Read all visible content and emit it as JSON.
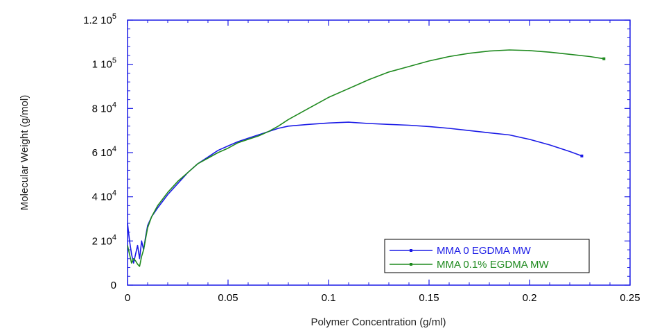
{
  "chart_data": {
    "type": "line",
    "xlabel": "Polymer Concentration (g/ml)",
    "ylabel": "Molecular Weight (g/mol)",
    "xlim": [
      0,
      0.25
    ],
    "ylim": [
      0,
      120000
    ],
    "x_ticks": [
      {
        "value": 0,
        "label": "0"
      },
      {
        "value": 0.05,
        "label": "0.05"
      },
      {
        "value": 0.1,
        "label": "0.1"
      },
      {
        "value": 0.15,
        "label": "0.15"
      },
      {
        "value": 0.2,
        "label": "0.2"
      },
      {
        "value": 0.25,
        "label": "0.25"
      }
    ],
    "y_ticks": [
      {
        "value": 0,
        "mantissa": "0",
        "exp": ""
      },
      {
        "value": 20000,
        "mantissa": "2 10",
        "exp": "4"
      },
      {
        "value": 40000,
        "mantissa": "4 10",
        "exp": "4"
      },
      {
        "value": 60000,
        "mantissa": "6 10",
        "exp": "4"
      },
      {
        "value": 80000,
        "mantissa": "8 10",
        "exp": "4"
      },
      {
        "value": 100000,
        "mantissa": "1 10",
        "exp": "5"
      },
      {
        "value": 120000,
        "mantissa": "1.2 10",
        "exp": "5"
      }
    ],
    "legend_position": "bottom-right",
    "grid": false,
    "series": [
      {
        "name": "MMA 0 EGDMA MW",
        "color": "#1a1ae6",
        "points": [
          [
            0,
            28000
          ],
          [
            0.001,
            20000
          ],
          [
            0.002,
            14000
          ],
          [
            0.003,
            10000
          ],
          [
            0.004,
            14000
          ],
          [
            0.005,
            18000
          ],
          [
            0.006,
            12000
          ],
          [
            0.007,
            20000
          ],
          [
            0.008,
            16000
          ],
          [
            0.009,
            22000
          ],
          [
            0.01,
            27000
          ],
          [
            0.012,
            31000
          ],
          [
            0.015,
            35000
          ],
          [
            0.02,
            41000
          ],
          [
            0.025,
            46000
          ],
          [
            0.03,
            51000
          ],
          [
            0.035,
            55000
          ],
          [
            0.04,
            58000
          ],
          [
            0.045,
            61000
          ],
          [
            0.05,
            63000
          ],
          [
            0.055,
            65000
          ],
          [
            0.06,
            66500
          ],
          [
            0.065,
            68000
          ],
          [
            0.07,
            69500
          ],
          [
            0.075,
            71000
          ],
          [
            0.08,
            72000
          ],
          [
            0.09,
            72800
          ],
          [
            0.1,
            73400
          ],
          [
            0.11,
            73800
          ],
          [
            0.12,
            73200
          ],
          [
            0.13,
            72800
          ],
          [
            0.14,
            72400
          ],
          [
            0.15,
            71800
          ],
          [
            0.16,
            71000
          ],
          [
            0.17,
            70000
          ],
          [
            0.18,
            69000
          ],
          [
            0.19,
            68000
          ],
          [
            0.2,
            66000
          ],
          [
            0.21,
            63500
          ],
          [
            0.22,
            60500
          ],
          [
            0.226,
            58500
          ]
        ]
      },
      {
        "name": "MMA 0.1% EGDMA MW",
        "color": "#1f8a1f",
        "points": [
          [
            0,
            18000
          ],
          [
            0.001,
            14000
          ],
          [
            0.002,
            10000
          ],
          [
            0.003,
            12000
          ],
          [
            0.004,
            11000
          ],
          [
            0.005,
            9500
          ],
          [
            0.006,
            8500
          ],
          [
            0.007,
            13000
          ],
          [
            0.008,
            16000
          ],
          [
            0.01,
            26000
          ],
          [
            0.012,
            31000
          ],
          [
            0.015,
            36000
          ],
          [
            0.02,
            42000
          ],
          [
            0.025,
            47000
          ],
          [
            0.03,
            51000
          ],
          [
            0.035,
            55000
          ],
          [
            0.04,
            57500
          ],
          [
            0.045,
            60000
          ],
          [
            0.05,
            62000
          ],
          [
            0.055,
            64500
          ],
          [
            0.06,
            66000
          ],
          [
            0.065,
            67500
          ],
          [
            0.07,
            69500
          ],
          [
            0.075,
            72000
          ],
          [
            0.08,
            75000
          ],
          [
            0.09,
            80000
          ],
          [
            0.1,
            85000
          ],
          [
            0.11,
            89000
          ],
          [
            0.12,
            93000
          ],
          [
            0.13,
            96500
          ],
          [
            0.14,
            99000
          ],
          [
            0.15,
            101500
          ],
          [
            0.16,
            103500
          ],
          [
            0.17,
            105000
          ],
          [
            0.18,
            106000
          ],
          [
            0.19,
            106500
          ],
          [
            0.2,
            106200
          ],
          [
            0.21,
            105500
          ],
          [
            0.22,
            104500
          ],
          [
            0.23,
            103500
          ],
          [
            0.237,
            102500
          ]
        ]
      }
    ]
  }
}
